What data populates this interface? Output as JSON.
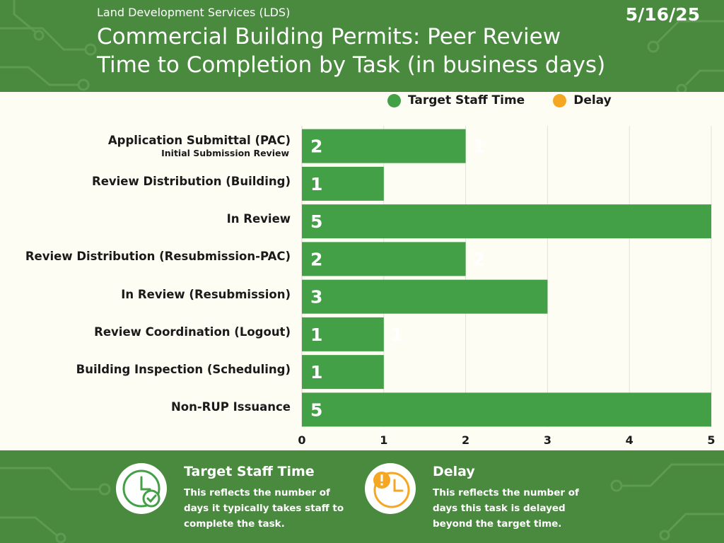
{
  "header": {
    "org": "Land Development Services (LDS)",
    "date": "5/16/25",
    "title_line1": "Commercial Building Permits: Peer Review",
    "title_line2": "Time to Completion by Task (in business days)"
  },
  "legend": [
    {
      "label": "Target Staff Time",
      "color": "#43a047"
    },
    {
      "label": "Delay",
      "color": "#f5a623"
    }
  ],
  "colors": {
    "brand": "#4a8a3f",
    "target_bar": "#43a047",
    "delay": "#f5a623",
    "background": "#fdfdf3"
  },
  "chart_data": {
    "type": "bar",
    "orientation": "horizontal",
    "stacked": true,
    "categories": [
      "Application Submittal (PAC)",
      "Review Distribution (Building)",
      "In Review",
      "Review Distribution (Resubmission-PAC)",
      "In Review (Resubmission)",
      "Review Coordination (Logout)",
      "Building Inspection (Scheduling)",
      "Non-RUP Issuance"
    ],
    "category_sublabels": [
      "Initial Submission Review",
      "",
      "",
      "",
      "",
      "",
      "",
      ""
    ],
    "series": [
      {
        "name": "Target Staff Time",
        "values": [
          2,
          1,
          5,
          2,
          3,
          1,
          1,
          5
        ]
      },
      {
        "name": "Delay",
        "values": [
          1,
          0,
          0,
          2,
          0,
          1,
          0,
          0
        ]
      }
    ],
    "xlim": [
      0,
      5
    ],
    "xticks": [
      "0",
      "1",
      "2",
      "3",
      "4",
      "5"
    ],
    "grid": true,
    "legend_position": "top-right"
  },
  "footer": {
    "target": {
      "icon": "clock-check-icon",
      "title": "Target Staff Time",
      "desc": "This reflects the number of days it typically takes staff to complete the task."
    },
    "delay": {
      "icon": "clock-alert-icon",
      "title": "Delay",
      "desc": "This reflects the number of days this task is delayed beyond the target time."
    }
  }
}
